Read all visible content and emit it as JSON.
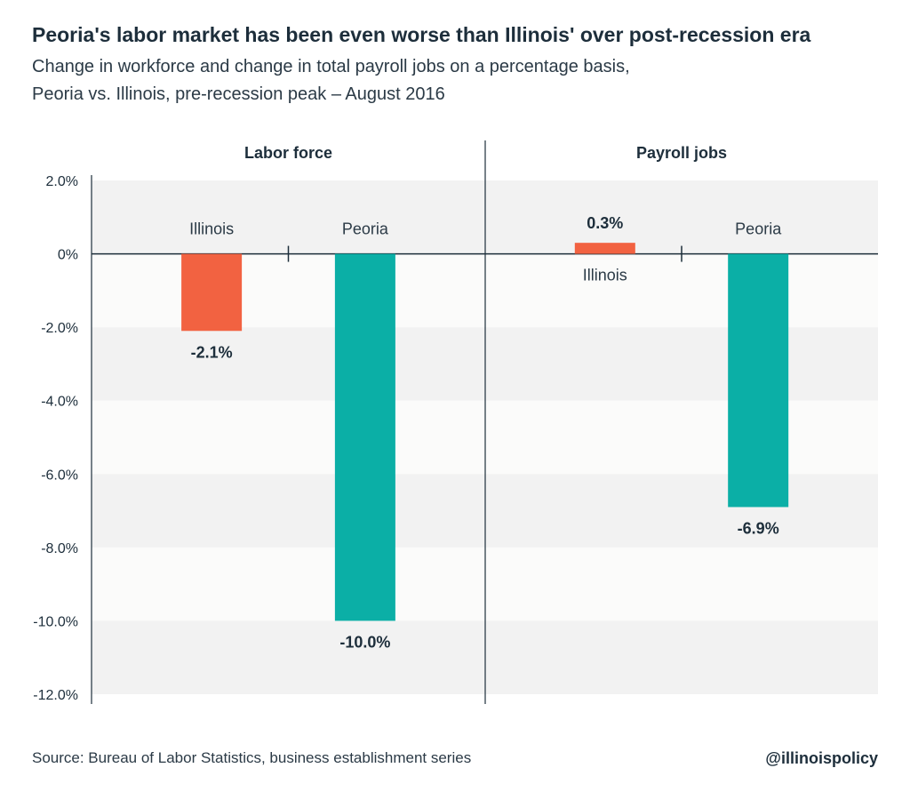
{
  "title": "Peoria's labor market has been even worse than Illinois' over post-recession era",
  "subtitle_line1": "Change in workforce and change in total payroll jobs on a percentage basis,",
  "subtitle_line2": "Peoria vs. Illinois, pre-recession peak – August 2016",
  "source": "Source: Bureau of Labor Statistics, business establishment series",
  "handle": "@illinoispolicy",
  "colors": {
    "illinois": "#f26241",
    "peoria": "#0bafa6",
    "band_dark": "#f2f2f2",
    "band_light": "#fbfbfa",
    "axis": "#1d2e3b"
  },
  "chart_data": {
    "type": "bar",
    "ylim": [
      -12,
      2
    ],
    "y_ticks": [
      "2.0%",
      "0%",
      "-2.0%",
      "-4.0%",
      "-6.0%",
      "-8.0%",
      "-10.0%",
      "-12.0%"
    ],
    "y_tick_values": [
      2,
      0,
      -2,
      -4,
      -6,
      -8,
      -10,
      -12
    ],
    "panels": [
      {
        "title": "Labor force",
        "categories": [
          "Illinois",
          "Peoria"
        ],
        "values": [
          -2.1,
          -10.0
        ],
        "value_labels": [
          "-2.1%",
          "-10.0%"
        ]
      },
      {
        "title": "Payroll jobs",
        "categories": [
          "Illinois",
          "Peoria"
        ],
        "values": [
          0.3,
          -6.9
        ],
        "value_labels": [
          "0.3%",
          "-6.9%"
        ]
      }
    ]
  }
}
